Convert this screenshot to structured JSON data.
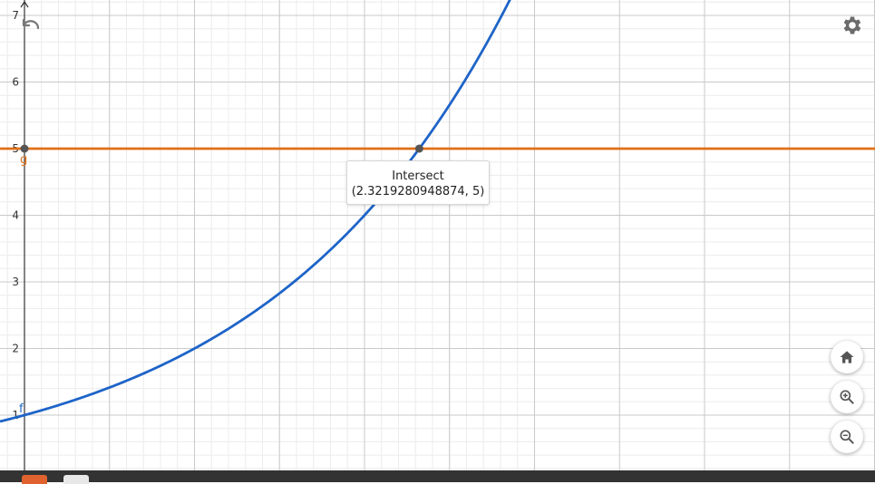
{
  "graph": {
    "x_axis_label": "",
    "y_axis_label": "",
    "y_tick_labels": [
      "1",
      "2",
      "3",
      "4",
      "5",
      "6",
      "7"
    ],
    "curve_f": {
      "label": "f",
      "expression": "2^x",
      "color": "#1e64c8"
    },
    "line_g": {
      "label": "g",
      "value": 5,
      "color": "#e06f16"
    },
    "intersection": {
      "x": 2.3219280948874,
      "y": 5
    }
  },
  "tooltip": {
    "title": "Intersect",
    "coords": "(2.3219280948874, 5)"
  },
  "toolbar": {
    "undo_icon": "undo-icon",
    "settings_icon": "gear-icon",
    "home_icon": "home-icon",
    "zoom_in_icon": "zoom-in-icon",
    "zoom_out_icon": "zoom-out-icon"
  },
  "colors": {
    "grid_major": "#c9c9c9",
    "grid_minor": "#ececec",
    "axis": "#333333",
    "point": "#555555"
  }
}
